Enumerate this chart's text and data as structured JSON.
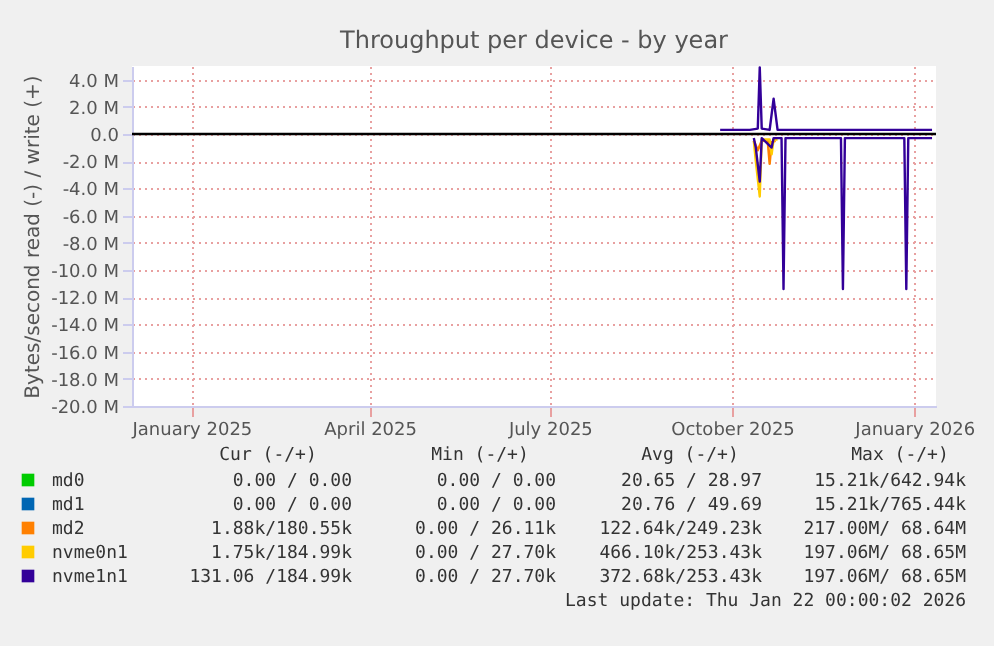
{
  "chart_data": {
    "type": "line",
    "title": "Throughput per device - by year",
    "ylabel": "Bytes/second read (-) / write (+)",
    "xlim": [
      "2024-12-02",
      "2026-01-12"
    ],
    "xticks": [
      {
        "value": "2025-01-01",
        "label": "January 2025"
      },
      {
        "value": "2025-04-01",
        "label": "April 2025"
      },
      {
        "value": "2025-07-01",
        "label": "July 2025"
      },
      {
        "value": "2025-10-01",
        "label": "October 2025"
      },
      {
        "value": "2026-01-01",
        "label": "January 2026"
      }
    ],
    "ylim": [
      -20,
      5
    ],
    "yticks": [
      {
        "value": 4,
        "label": "4.0 M"
      },
      {
        "value": 2,
        "label": "2.0 M"
      },
      {
        "value": 0,
        "label": "0.0"
      },
      {
        "value": -2,
        "label": "-2.0 M"
      },
      {
        "value": -4,
        "label": "-4.0 M"
      },
      {
        "value": -6,
        "label": "-6.0 M"
      },
      {
        "value": -8,
        "label": "-8.0 M"
      },
      {
        "value": -10,
        "label": "-10.0 M"
      },
      {
        "value": -12,
        "label": "-12.0 M"
      },
      {
        "value": -14,
        "label": "-14.0 M"
      },
      {
        "value": -16,
        "label": "-16.0 M"
      },
      {
        "value": -18,
        "label": "-18.0 M"
      },
      {
        "value": -20,
        "label": "-20.0 M"
      }
    ],
    "grid": true,
    "legend": "bottom",
    "ref_lines": [
      {
        "axis": "y",
        "value": 0,
        "color": "#000000"
      }
    ],
    "series": [
      {
        "name": "md0",
        "color": "#00cc00"
      },
      {
        "name": "md1",
        "color": "#0066b3"
      },
      {
        "name": "md2",
        "color": "#ff8000",
        "x": [
          "2025-10-12",
          "2025-10-14",
          "2025-10-16",
          "2025-10-19",
          "2025-10-20",
          "2025-10-21",
          "2025-10-23"
        ],
        "values": [
          -0.5,
          -1.2,
          -0.5,
          -0.5,
          -2.2,
          -0.6,
          -0.5
        ]
      },
      {
        "name": "nvme0n1",
        "color": "#ffcc00",
        "x": [
          "2025-10-12",
          "2025-10-13",
          "2025-10-15",
          "2025-10-16",
          "2025-10-20",
          "2025-10-21",
          "2025-10-22",
          "2025-10-24"
        ],
        "values": [
          -0.5,
          -2.0,
          -4.6,
          -0.4,
          -0.4,
          -1.5,
          -0.4,
          -0.4
        ]
      },
      {
        "color": "#330099",
        "x": [
          "2025-10-12",
          "2025-10-13",
          "2025-10-15",
          "2025-10-16",
          "2025-10-21",
          "2025-10-22",
          "2025-10-26",
          "2025-10-27",
          "2025-10-28",
          "2025-11-25",
          "2025-11-26",
          "2025-11-27",
          "2025-12-27",
          "2025-12-28",
          "2025-12-29",
          "2026-01-10"
        ],
        "values": [
          -0.3,
          -1.0,
          -3.5,
          -0.3,
          -1.0,
          -0.3,
          -0.3,
          -11.4,
          -0.3,
          -0.3,
          -11.4,
          -0.3,
          -0.3,
          -11.4,
          -0.3,
          -0.3
        ]
      },
      {
        "name": "nvme1n1",
        "color": "#330099",
        "x": [
          "2025-09-25",
          "2025-10-01",
          "2025-10-10",
          "2025-10-14",
          "2025-10-15",
          "2025-10-16",
          "2025-10-20",
          "2025-10-22",
          "2025-10-24",
          "2025-11-01",
          "2025-12-01",
          "2026-01-10"
        ],
        "values": [
          0.3,
          0.3,
          0.3,
          0.4,
          4.9,
          0.4,
          0.3,
          2.6,
          0.3,
          0.3,
          0.3,
          0.3
        ]
      }
    ],
    "annotations": [
      "Cur (-/+)",
      "Min (-/+)",
      "Avg (-/+)",
      "Max (-/+)",
      "0.00 /  0.00",
      "0.00 /  0.00",
      "20.65 / 28.97",
      "15.21k/642.94k",
      "0.00 /  0.00",
      "0.00 /  0.00",
      "20.76 / 49.69",
      "15.21k/765.44k",
      "1.88k/180.55k",
      "0.00 / 26.11k",
      "122.64k/249.23k",
      "217.00M/ 68.64M",
      "1.75k/184.99k",
      "0.00 / 27.70k",
      "466.10k/253.43k",
      "197.06M/ 68.65M",
      "131.06 /184.99k",
      "0.00 / 27.70k",
      "372.68k/253.43k",
      "197.06M/ 68.65M",
      "Last update: Thu Jan 22 00:00:02 2026"
    ]
  }
}
